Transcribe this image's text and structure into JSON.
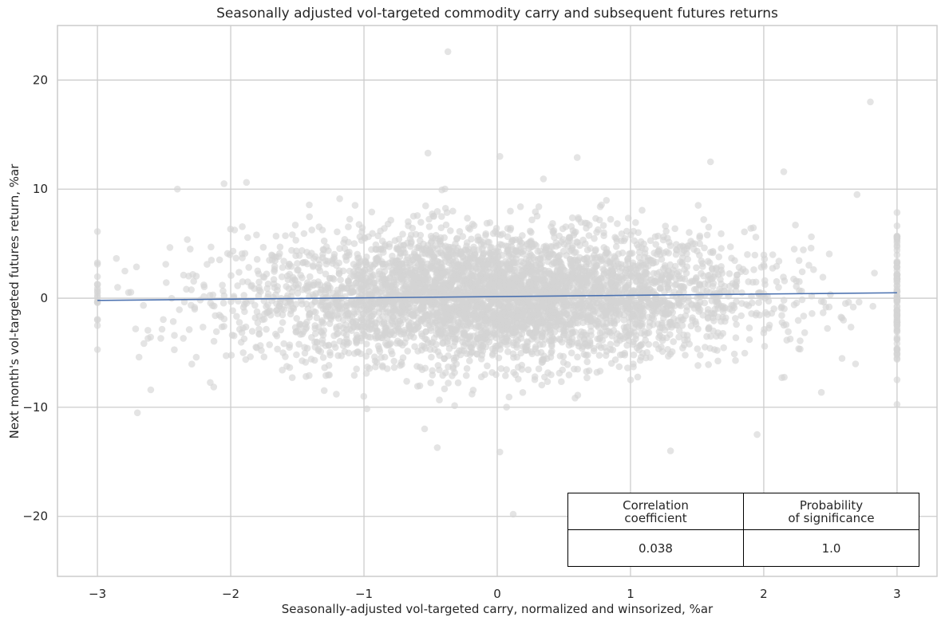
{
  "chart_data": {
    "type": "scatter",
    "title": "Seasonally adjusted vol-targeted commodity carry and subsequent futures returns",
    "xlabel": "Seasonally-adjusted vol-targeted carry, normalized and winsorized, %ar",
    "ylabel": "Next month's vol-targeted futures return, %ar",
    "xlim": [
      -3.3,
      3.3
    ],
    "ylim": [
      -25.5,
      25
    ],
    "xticks": [
      -3,
      -2,
      -1,
      0,
      1,
      2,
      3
    ],
    "xtick_labels": [
      "−3",
      "−2",
      "−1",
      "0",
      "1",
      "2",
      "3"
    ],
    "yticks": [
      -20,
      -10,
      0,
      10,
      20
    ],
    "ytick_labels": [
      "−20",
      "−10",
      "0",
      "10",
      "20"
    ],
    "grid": true,
    "point_color": "#d3d3d3",
    "line_color": "#4c72b0",
    "regression_line": {
      "x": [
        -3,
        3
      ],
      "y": [
        -0.2,
        0.5
      ]
    },
    "scatter_summary": {
      "approx_points": 4500,
      "x_center": 0,
      "y_center": 0,
      "winsorized_x_bounds": [
        -3,
        3
      ],
      "notable_outliers": [
        {
          "x": -0.37,
          "y": 22.6
        },
        {
          "x": 2.8,
          "y": 18.0
        },
        {
          "x": 0.12,
          "y": -19.8
        },
        {
          "x": 1.3,
          "y": -14.0
        },
        {
          "x": -0.45,
          "y": -13.7
        },
        {
          "x": 1.95,
          "y": -12.5
        },
        {
          "x": 0.02,
          "y": -14.1
        },
        {
          "x": -0.52,
          "y": 13.3
        },
        {
          "x": 0.02,
          "y": 13.0
        },
        {
          "x": -2.7,
          "y": -10.5
        },
        {
          "x": -2.6,
          "y": -8.4
        },
        {
          "x": -2.4,
          "y": 10.0
        },
        {
          "x": -2.05,
          "y": 10.5
        },
        {
          "x": 1.6,
          "y": 12.5
        },
        {
          "x": 2.15,
          "y": 11.6
        },
        {
          "x": 2.7,
          "y": 9.5
        },
        {
          "x": 0.6,
          "y": 12.9
        }
      ]
    },
    "stats_table": {
      "headers": [
        "Correlation\ncoefficient",
        "Probability\nof significance"
      ],
      "values": [
        "0.038",
        "1.0"
      ]
    }
  },
  "stats": {
    "header_corr_line1": "Correlation",
    "header_corr_line2": "coefficient",
    "header_prob_line1": "Probability",
    "header_prob_line2": "of significance",
    "corr_value": "0.038",
    "prob_value": "1.0"
  }
}
